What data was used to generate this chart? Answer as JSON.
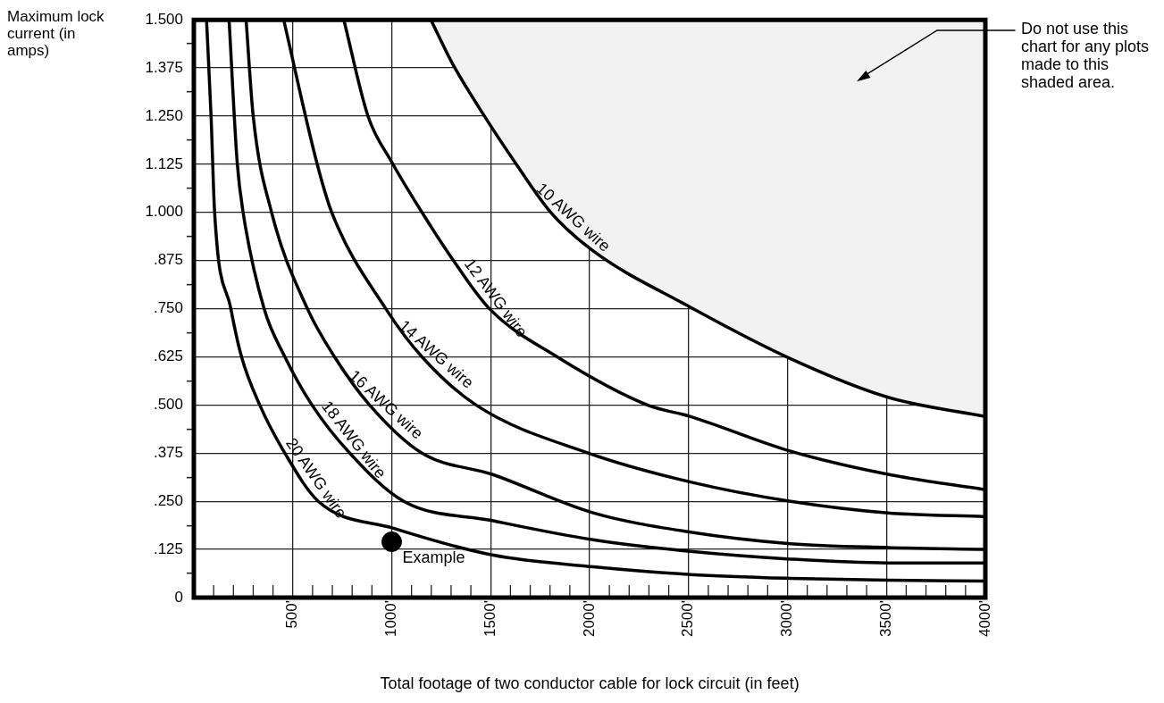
{
  "chart_data": {
    "type": "line",
    "xlabel": "Total footage of two conductor cable for lock circuit (in feet)",
    "ylabel": "Maximum lock current (in amps)",
    "xlim": [
      0,
      4000
    ],
    "ylim": [
      0,
      1.5
    ],
    "xticks": [
      {
        "value": 100,
        "label": null
      },
      {
        "value": 200,
        "label": null
      },
      {
        "value": 300,
        "label": null
      },
      {
        "value": 400,
        "label": null
      },
      {
        "value": 500,
        "label": "500'"
      },
      {
        "value": 600,
        "label": null
      },
      {
        "value": 700,
        "label": null
      },
      {
        "value": 800,
        "label": null
      },
      {
        "value": 900,
        "label": null
      },
      {
        "value": 1000,
        "label": "1000'"
      },
      {
        "value": 1100,
        "label": null
      },
      {
        "value": 1200,
        "label": null
      },
      {
        "value": 1300,
        "label": null
      },
      {
        "value": 1400,
        "label": null
      },
      {
        "value": 1500,
        "label": "1500'"
      },
      {
        "value": 1600,
        "label": null
      },
      {
        "value": 1700,
        "label": null
      },
      {
        "value": 1800,
        "label": null
      },
      {
        "value": 1900,
        "label": null
      },
      {
        "value": 2000,
        "label": "2000'"
      },
      {
        "value": 2100,
        "label": null
      },
      {
        "value": 2200,
        "label": null
      },
      {
        "value": 2300,
        "label": null
      },
      {
        "value": 2400,
        "label": null
      },
      {
        "value": 2500,
        "label": "2500'"
      },
      {
        "value": 2600,
        "label": null
      },
      {
        "value": 2700,
        "label": null
      },
      {
        "value": 2800,
        "label": null
      },
      {
        "value": 2900,
        "label": null
      },
      {
        "value": 3000,
        "label": "3000'"
      },
      {
        "value": 3100,
        "label": null
      },
      {
        "value": 3200,
        "label": null
      },
      {
        "value": 3300,
        "label": null
      },
      {
        "value": 3400,
        "label": null
      },
      {
        "value": 3500,
        "label": "3500'"
      },
      {
        "value": 3600,
        "label": null
      },
      {
        "value": 3700,
        "label": null
      },
      {
        "value": 3800,
        "label": null
      },
      {
        "value": 3900,
        "label": null
      },
      {
        "value": 4000,
        "label": "4000'"
      }
    ],
    "yticks": [
      0,
      {
        "value": 0.0625,
        "label": null
      },
      {
        "value": 0.125,
        "label": ".125"
      },
      {
        "value": 0.1875,
        "label": null
      },
      {
        "value": 0.25,
        "label": ".250"
      },
      {
        "value": 0.3125,
        "label": null
      },
      {
        "value": 0.375,
        "label": ".375"
      },
      {
        "value": 0.4375,
        "label": null
      },
      {
        "value": 0.5,
        "label": ".500"
      },
      {
        "value": 0.5625,
        "label": null
      },
      {
        "value": 0.625,
        "label": ".625"
      },
      {
        "value": 0.6875,
        "label": null
      },
      {
        "value": 0.75,
        "label": ".750"
      },
      {
        "value": 0.8125,
        "label": null
      },
      {
        "value": 0.875,
        "label": ".875"
      },
      {
        "value": 0.9375,
        "label": null
      },
      {
        "value": 1,
        "label": "1.000"
      },
      {
        "value": 1.0625,
        "label": null
      },
      {
        "value": 1.125,
        "label": "1.125"
      },
      {
        "value": 1.1875,
        "label": null
      },
      {
        "value": 1.25,
        "label": "1.250"
      },
      {
        "value": 1.3125,
        "label": null
      },
      {
        "value": 1.375,
        "label": "1.375"
      },
      {
        "value": 1.4375,
        "label": null
      },
      {
        "value": 1.5,
        "label": "1.500"
      }
    ],
    "grid": true,
    "legend": false,
    "marker": "none",
    "line_style": "solid",
    "series": [
      {
        "name": "10 AWG wire",
        "color": "#000000",
        "x": [
          1198,
          1303,
          1456,
          1623,
          1804,
          2018,
          2487,
          3016,
          3508,
          4000
        ],
        "values": [
          1.5,
          1.39,
          1.26,
          1.13,
          1.0,
          0.9,
          0.76,
          0.62,
          0.52,
          0.47
        ],
        "lower": [
          1.5,
          1.39,
          1.26,
          1.13,
          1.0,
          0.9,
          0.76,
          0.62,
          0.52,
          0.47
        ],
        "upper": [
          1.5,
          1.5,
          1.5,
          1.5,
          1.5,
          1.5,
          1.5,
          1.5,
          1.5,
          1.5
        ]
      },
      {
        "name": "12 AWG wire",
        "color": "#000000",
        "x": [
          758,
          880,
          1001,
          1153,
          1312,
          1494,
          1836,
          2292,
          2510,
          3016,
          3508,
          4000
        ],
        "values": [
          1.5,
          1.25,
          1.13,
          1.0,
          0.875,
          0.75,
          0.625,
          0.5,
          0.47,
          0.38,
          0.32,
          0.28
        ]
      },
      {
        "name": "14 AWG wire",
        "color": "#000000",
        "x": [
          454,
          621,
          697,
          970,
          1153,
          1426,
          1995,
          2510,
          3016,
          3508,
          4000
        ],
        "values": [
          1.5,
          1.13,
          1.0,
          0.75,
          0.625,
          0.5,
          0.375,
          0.3,
          0.25,
          0.22,
          0.21
        ]
      },
      {
        "name": "16 AWG wire",
        "color": "#000000",
        "x": [
          264,
          300,
          393,
          574,
          711,
          888,
          1153,
          1507,
          2018,
          2510,
          3016,
          3508,
          4000
        ],
        "values": [
          1.5,
          1.25,
          1.0,
          0.75,
          0.625,
          0.5,
          0.375,
          0.32,
          0.22,
          0.17,
          0.14,
          0.13,
          0.125
        ]
      },
      {
        "name": "18 AWG wire",
        "color": "#000000",
        "x": [
          178,
          219,
          249,
          355,
          460,
          597,
          788,
          1061,
          1507,
          2018,
          2510,
          3016,
          3508,
          4000
        ],
        "values": [
          1.5,
          1.13,
          1.0,
          0.75,
          0.625,
          0.5,
          0.375,
          0.25,
          0.2,
          0.15,
          0.12,
          0.1,
          0.09,
          0.09
        ]
      },
      {
        "name": "20 AWG wire",
        "color": "#000000",
        "x": [
          64,
          87,
          105,
          187,
          241,
          333,
          460,
          629,
          1009,
          1514,
          2018,
          2510,
          3016,
          3508,
          4000
        ],
        "values": [
          1.5,
          1.25,
          1.0,
          0.75,
          0.625,
          0.5,
          0.375,
          0.25,
          0.18,
          0.11,
          0.08,
          0.06,
          0.05,
          0.045,
          0.043
        ]
      },
      {
        "type": "scatter",
        "name": "Example",
        "color": "#000000",
        "marker": "circle",
        "x": [
          1000
        ],
        "values": [
          0.145
        ]
      }
    ],
    "annotations": [
      "Do not use this chart for any plots made to this shaded area."
    ]
  }
}
